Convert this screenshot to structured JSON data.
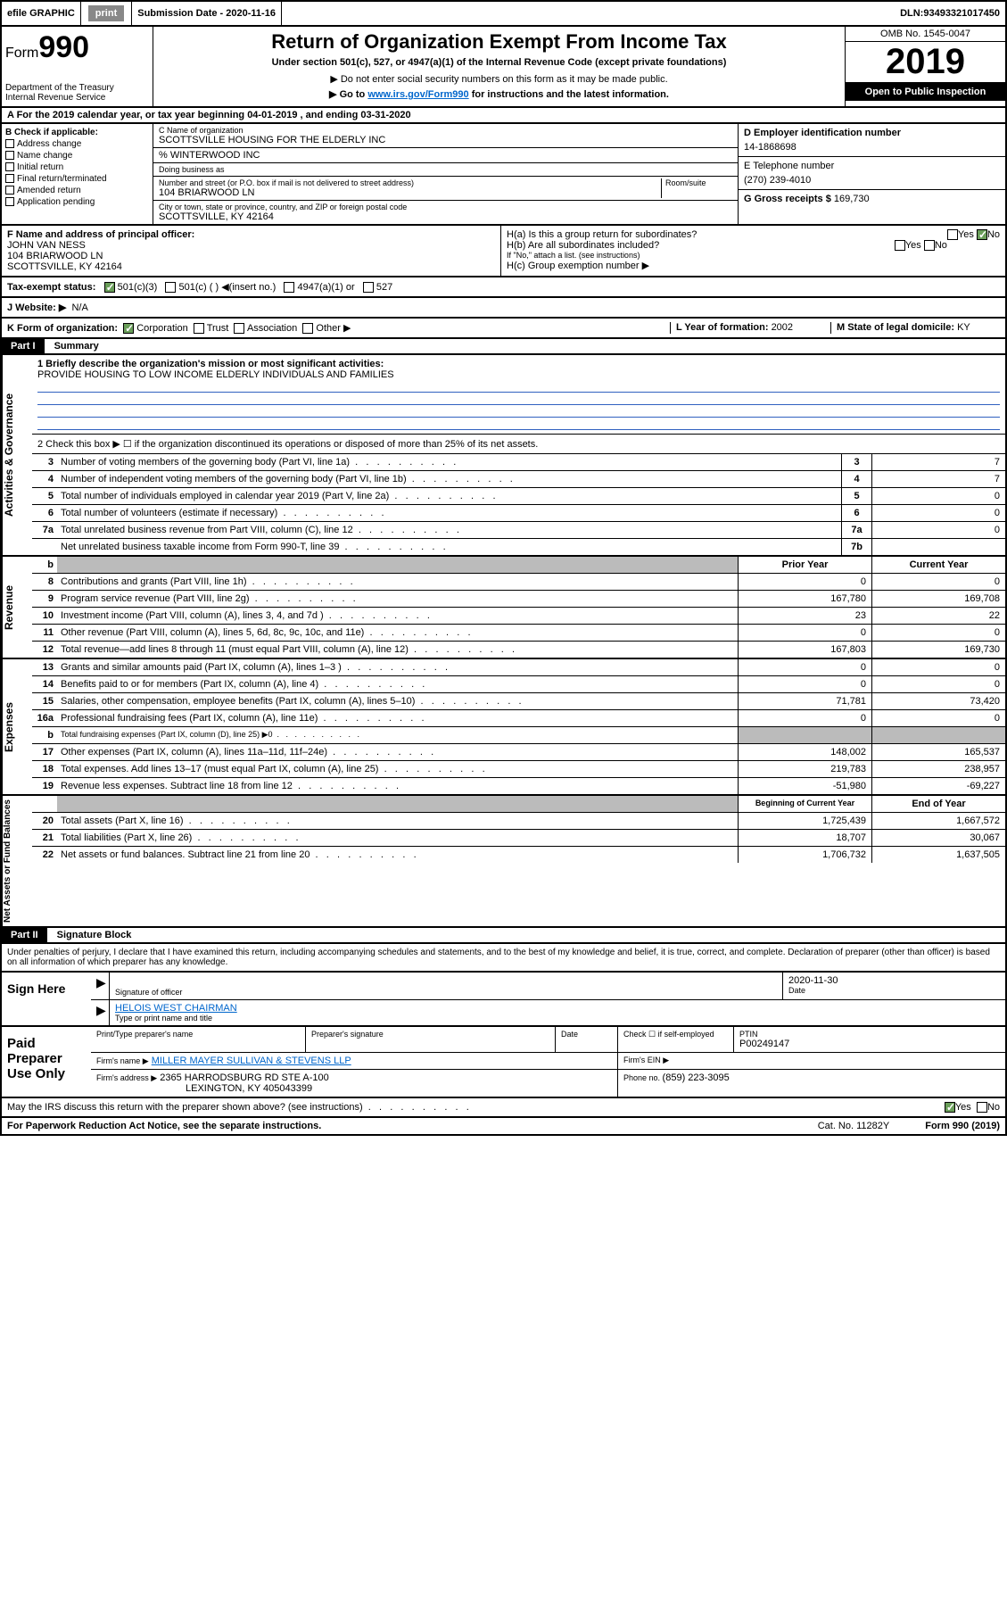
{
  "topbar": {
    "efile": "efile GRAPHIC",
    "print": "print",
    "subdate_label": "Submission Date - ",
    "subdate": "2020-11-16",
    "dln_label": "DLN: ",
    "dln": "93493321017450"
  },
  "header": {
    "form_label": "Form",
    "form_num": "990",
    "dept1": "Department of the Treasury",
    "dept2": "Internal Revenue Service",
    "title": "Return of Organization Exempt From Income Tax",
    "subtitle": "Under section 501(c), 527, or 4947(a)(1) of the Internal Revenue Code (except private foundations)",
    "note1": "▶ Do not enter social security numbers on this form as it may be made public.",
    "note2_a": "▶ Go to ",
    "note2_link": "www.irs.gov/Form990",
    "note2_b": " for instructions and the latest information.",
    "omb": "OMB No. 1545-0047",
    "year": "2019",
    "open": "Open to Public Inspection"
  },
  "sectionA": "A For the 2019 calendar year, or tax year beginning 04-01-2019    , and ending 03-31-2020",
  "colB": {
    "hdr": "B Check if applicable:",
    "items": [
      "Address change",
      "Name change",
      "Initial return",
      "Final return/terminated",
      "Amended return",
      "Application pending"
    ]
  },
  "colC": {
    "name_lbl": "C Name of organization",
    "name": "SCOTTSVILLE HOUSING FOR THE ELDERLY INC",
    "care": "% WINTERWOOD INC",
    "dba_lbl": "Doing business as",
    "addr_lbl": "Number and street (or P.O. box if mail is not delivered to street address)",
    "room_lbl": "Room/suite",
    "addr": "104 BRIARWOOD LN",
    "city_lbl": "City or town, state or province, country, and ZIP or foreign postal code",
    "city": "SCOTTSVILLE, KY  42164"
  },
  "colD": {
    "ein_lbl": "D Employer identification number",
    "ein": "14-1868698"
  },
  "colE": {
    "lbl": "E Telephone number",
    "val": "(270) 239-4010"
  },
  "colG": {
    "lbl": "G Gross receipts $ ",
    "val": "169,730"
  },
  "rowF": {
    "lbl": "F  Name and address of principal officer:",
    "name": "JOHN VAN NESS",
    "addr1": "104 BRIARWOOD LN",
    "addr2": "SCOTTSVILLE, KY  42164"
  },
  "rowH": {
    "ha": "H(a)  Is this a group return for subordinates?",
    "hb": "H(b)  Are all subordinates included?",
    "hb_note": "If \"No,\" attach a list. (see instructions)",
    "hc": "H(c)  Group exemption number ▶",
    "yes": "Yes",
    "no": "No"
  },
  "rowI": {
    "lbl": "Tax-exempt status:",
    "opts": [
      "501(c)(3)",
      "501(c) (  ) ◀(insert no.)",
      "4947(a)(1) or",
      "527"
    ]
  },
  "rowJ": {
    "lbl": "J   Website: ▶",
    "val": "N/A"
  },
  "rowK": {
    "lbl": "K Form of organization:",
    "opts": [
      "Corporation",
      "Trust",
      "Association",
      "Other ▶"
    ]
  },
  "rowL": {
    "lbl": "L Year of formation: ",
    "val": "2002"
  },
  "rowM": {
    "lbl": "M State of legal domicile: ",
    "val": "KY"
  },
  "part1": {
    "hdr": "Part I",
    "title": "Summary"
  },
  "governance": {
    "label": "Activities & Governance",
    "l1_lbl": "1  Briefly describe the organization's mission or most significant activities:",
    "l1_val": "PROVIDE HOUSING TO LOW INCOME ELDERLY INDIVIDUALS AND FAMILIES",
    "l2": "2   Check this box ▶ ☐  if the organization discontinued its operations or disposed of more than 25% of its net assets.",
    "rows": [
      {
        "n": "3",
        "d": "Number of voting members of the governing body (Part VI, line 1a)",
        "box": "3",
        "v": "7"
      },
      {
        "n": "4",
        "d": "Number of independent voting members of the governing body (Part VI, line 1b)",
        "box": "4",
        "v": "7"
      },
      {
        "n": "5",
        "d": "Total number of individuals employed in calendar year 2019 (Part V, line 2a)",
        "box": "5",
        "v": "0"
      },
      {
        "n": "6",
        "d": "Total number of volunteers (estimate if necessary)",
        "box": "6",
        "v": "0"
      },
      {
        "n": "7a",
        "d": "Total unrelated business revenue from Part VIII, column (C), line 12",
        "box": "7a",
        "v": "0"
      },
      {
        "n": "",
        "d": "Net unrelated business taxable income from Form 990-T, line 39",
        "box": "7b",
        "v": ""
      }
    ]
  },
  "twocol_hdr": {
    "b": "b",
    "prior": "Prior Year",
    "current": "Current Year"
  },
  "revenue": {
    "label": "Revenue",
    "rows": [
      {
        "n": "8",
        "d": "Contributions and grants (Part VIII, line 1h)",
        "p": "0",
        "c": "0"
      },
      {
        "n": "9",
        "d": "Program service revenue (Part VIII, line 2g)",
        "p": "167,780",
        "c": "169,708"
      },
      {
        "n": "10",
        "d": "Investment income (Part VIII, column (A), lines 3, 4, and 7d )",
        "p": "23",
        "c": "22"
      },
      {
        "n": "11",
        "d": "Other revenue (Part VIII, column (A), lines 5, 6d, 8c, 9c, 10c, and 11e)",
        "p": "0",
        "c": "0"
      },
      {
        "n": "12",
        "d": "Total revenue—add lines 8 through 11 (must equal Part VIII, column (A), line 12)",
        "p": "167,803",
        "c": "169,730"
      }
    ]
  },
  "expenses": {
    "label": "Expenses",
    "rows": [
      {
        "n": "13",
        "d": "Grants and similar amounts paid (Part IX, column (A), lines 1–3 )",
        "p": "0",
        "c": "0"
      },
      {
        "n": "14",
        "d": "Benefits paid to or for members (Part IX, column (A), line 4)",
        "p": "0",
        "c": "0"
      },
      {
        "n": "15",
        "d": "Salaries, other compensation, employee benefits (Part IX, column (A), lines 5–10)",
        "p": "71,781",
        "c": "73,420"
      },
      {
        "n": "16a",
        "d": "Professional fundraising fees (Part IX, column (A), line 11e)",
        "p": "0",
        "c": "0"
      },
      {
        "n": "b",
        "d": "Total fundraising expenses (Part IX, column (D), line 25) ▶0",
        "p": "",
        "c": "",
        "grey": true,
        "small": true
      },
      {
        "n": "17",
        "d": "Other expenses (Part IX, column (A), lines 11a–11d, 11f–24e)",
        "p": "148,002",
        "c": "165,537"
      },
      {
        "n": "18",
        "d": "Total expenses. Add lines 13–17 (must equal Part IX, column (A), line 25)",
        "p": "219,783",
        "c": "238,957"
      },
      {
        "n": "19",
        "d": "Revenue less expenses. Subtract line 18 from line 12",
        "p": "-51,980",
        "c": "-69,227"
      }
    ]
  },
  "netassets_hdr": {
    "prior": "Beginning of Current Year",
    "current": "End of Year"
  },
  "netassets": {
    "label": "Net Assets or Fund Balances",
    "rows": [
      {
        "n": "20",
        "d": "Total assets (Part X, line 16)",
        "p": "1,725,439",
        "c": "1,667,572"
      },
      {
        "n": "21",
        "d": "Total liabilities (Part X, line 26)",
        "p": "18,707",
        "c": "30,067"
      },
      {
        "n": "22",
        "d": "Net assets or fund balances. Subtract line 21 from line 20",
        "p": "1,706,732",
        "c": "1,637,505"
      }
    ]
  },
  "part2": {
    "hdr": "Part II",
    "title": "Signature Block"
  },
  "perjury": "Under penalties of perjury, I declare that I have examined this return, including accompanying schedules and statements, and to the best of my knowledge and belief, it is true, correct, and complete. Declaration of preparer (other than officer) is based on all information of which preparer has any knowledge.",
  "sign": {
    "here": "Sign Here",
    "sig_lbl": "Signature of officer",
    "date_lbl": "Date",
    "date": "2020-11-30",
    "name": "HELOIS WEST CHAIRMAN",
    "name_lbl": "Type or print name and title"
  },
  "paid": {
    "hdr": "Paid Preparer Use Only",
    "pt_lbl": "Print/Type preparer's name",
    "sig_lbl": "Preparer's signature",
    "date_lbl": "Date",
    "check_lbl": "Check ☐ if self-employed",
    "ptin_lbl": "PTIN",
    "ptin": "P00249147",
    "firm_lbl": "Firm's name    ▶",
    "firm": "MILLER MAYER SULLIVAN & STEVENS LLP",
    "ein_lbl": "Firm's EIN ▶",
    "addr_lbl": "Firm's address ▶",
    "addr1": "2365 HARRODSBURG RD STE A-100",
    "addr2": "LEXINGTON, KY  405043399",
    "phone_lbl": "Phone no. ",
    "phone": "(859) 223-3095"
  },
  "discuss": {
    "q": "May the IRS discuss this return with the preparer shown above? (see instructions)",
    "yes": "Yes",
    "no": "No"
  },
  "footer": {
    "pra": "For Paperwork Reduction Act Notice, see the separate instructions.",
    "cat": "Cat. No. 11282Y",
    "form": "Form 990 (2019)"
  }
}
